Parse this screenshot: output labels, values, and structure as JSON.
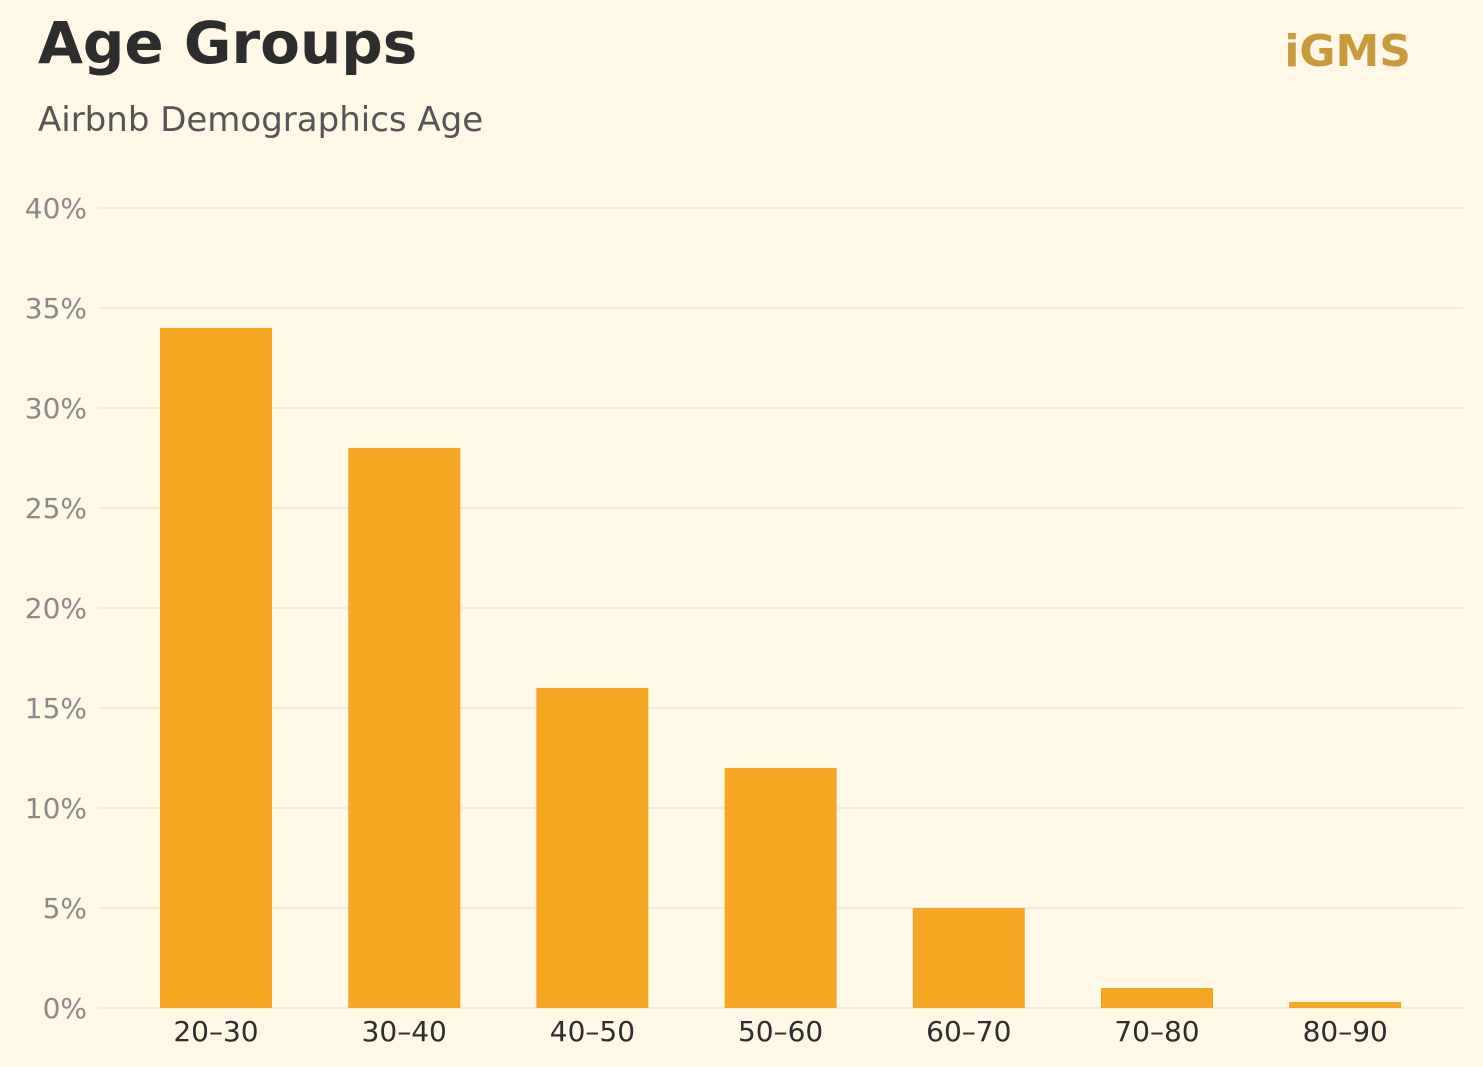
{
  "header": {
    "title": "Age Groups",
    "subtitle": "Airbnb Demographics Age",
    "brand": "iGMS"
  },
  "colors": {
    "background": "#FFF8E7",
    "bar": "#F5A623",
    "grid": "#F0E6E0",
    "brand": "#C99A3B"
  },
  "chart_data": {
    "type": "bar",
    "title": "Age Groups",
    "subtitle": "Airbnb Demographics Age",
    "xlabel": "",
    "ylabel": "",
    "categories": [
      "20–30",
      "30–40",
      "40–50",
      "50–60",
      "60–70",
      "70–80",
      "80–90"
    ],
    "values": [
      34,
      28,
      16,
      12,
      5,
      1,
      0.3
    ],
    "unit": "%",
    "ylim": [
      0,
      40
    ],
    "yticks": [
      0,
      5,
      10,
      15,
      20,
      25,
      30,
      35,
      40
    ],
    "ytick_labels": [
      "0%",
      "5%",
      "10%",
      "15%",
      "20%",
      "25%",
      "30%",
      "35%",
      "40%"
    ],
    "grid": true,
    "legend": "none"
  }
}
